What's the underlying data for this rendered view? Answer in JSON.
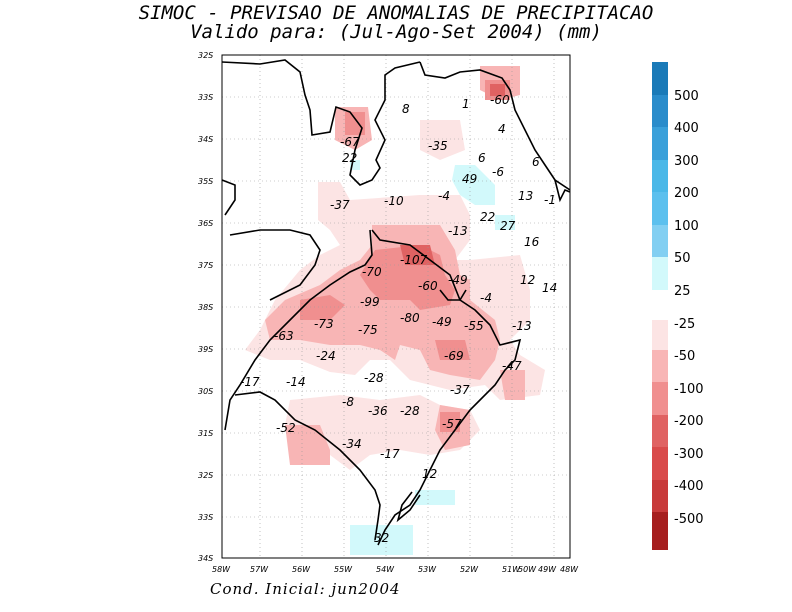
{
  "title": "SIMOC - PREVISAO DE ANOMALIAS DE PRECIPITACAO",
  "subtitle": "Valido para: (Jul-Ago-Set 2004) (mm)",
  "footer": "Cond. Inicial: jun2004",
  "axes": {
    "lat_labels": [
      "32S",
      "33S",
      "34S",
      "35S",
      "36S",
      "37S",
      "38S",
      "39S",
      "30S",
      "31S",
      "32S",
      "33S",
      "34S"
    ],
    "lon_labels": [
      "58W",
      "57W",
      "56W",
      "55W",
      "54W",
      "53W",
      "52W",
      "51W",
      "50W",
      "49W",
      "48W"
    ]
  },
  "legend": {
    "positive_colors": [
      "#1a7ab8",
      "#2a8ccb",
      "#3aa0da",
      "#4ab8e8",
      "#82cff2",
      "#d2f9fb"
    ],
    "positive_labels": [
      "500",
      "400",
      "300",
      "200",
      "100",
      "50",
      "25"
    ],
    "negative_colors": [
      "#fce4e4",
      "#f8b5b5",
      "#f08f8f",
      "#e06262",
      "#d94a4a",
      "#c83a3a",
      "#b52a2a",
      "#a61e1e"
    ],
    "negative_labels": [
      "-25",
      "-50",
      "-100",
      "-200",
      "-300",
      "-400",
      "-500"
    ]
  },
  "map_labels": [
    "8",
    "1",
    "-60",
    "4",
    "-67",
    "-35",
    "22",
    "6",
    "-6",
    "6",
    "49",
    "-4",
    "13",
    "-1",
    "-37",
    "-10",
    "22",
    "27",
    "-13",
    "16",
    "-107",
    "-70",
    "-49",
    "12",
    "-60",
    "-4",
    "14",
    "-99",
    "-73",
    "-63",
    "-75",
    "-80",
    "-49",
    "-55",
    "-13",
    "-69",
    "-24",
    "-47",
    "-17",
    "-14",
    "-28",
    "-37",
    "-8",
    "-36",
    "-28",
    "-52",
    "-57",
    "-34",
    "-17",
    "12",
    "32"
  ]
}
